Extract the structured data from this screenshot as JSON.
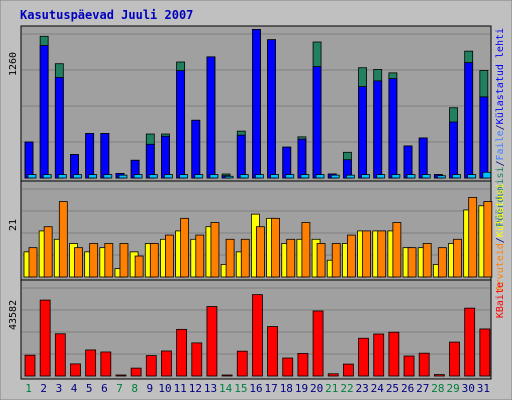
{
  "title": "Kasutuspäevad Juuli 2007",
  "colors": {
    "background": "#c0c0c0",
    "panel": "#a0a0a0",
    "title": "#0000c0",
    "day_normal": "#000080",
    "day_weekend": "#008040",
    "visits": "#208060",
    "pages": "#0000ff",
    "files": "#4080ff",
    "hits": "#00c0ff",
    "kbytes": "#ff0000",
    "sites": "#ffff00",
    "visitors": "#ff8000",
    "legend_pages": "#0000ff",
    "legend_files": "#4080ff",
    "legend_visits": "#208060",
    "legend_sites": "#ff8000",
    "legend_visitors": "#ffff00",
    "legend_kbytes": "#ff0000"
  },
  "chart_data": {
    "type": "bar",
    "categories": [
      "1",
      "2",
      "3",
      "4",
      "5",
      "6",
      "7",
      "8",
      "9",
      "10",
      "11",
      "12",
      "13",
      "14",
      "15",
      "16",
      "17",
      "18",
      "19",
      "20",
      "21",
      "22",
      "23",
      "24",
      "25",
      "26",
      "27",
      "28",
      "29",
      "30",
      "31"
    ],
    "weekend_days": [
      "1",
      "7",
      "8",
      "14",
      "15",
      "21",
      "22",
      "28",
      "29"
    ],
    "panels": [
      {
        "id": "usage",
        "ymax_label": "1260",
        "ymax": 1260,
        "legend": [
          {
            "text": "Pöördumisi",
            "color_key": "legend_visits"
          },
          {
            "text": "/",
            "color_key": "day_normal"
          },
          {
            "text": "Faile",
            "color_key": "legend_files"
          },
          {
            "text": "/",
            "color_key": "day_normal"
          },
          {
            "text": "Külastatud lehti",
            "color_key": "legend_pages"
          }
        ],
        "series": [
          {
            "name": "Pöördumisi",
            "color_key": "visits",
            "values": [
              315,
              1240,
              1000,
              205,
              390,
              390,
              40,
              155,
              385,
              385,
              1015,
              505,
              1060,
              35,
              410,
              1300,
              1210,
              270,
              360,
              1190,
              35,
              225,
              965,
              950,
              920,
              280,
              350,
              30,
              615,
              1110,
              940
            ]
          },
          {
            "name": "Külastatud lehti",
            "color_key": "pages",
            "values": [
              315,
              1160,
              880,
              205,
              390,
              390,
              40,
              155,
              295,
              365,
              940,
              505,
              1060,
              20,
              375,
              1300,
              1210,
              270,
              340,
              975,
              35,
              160,
              800,
              850,
              870,
              280,
              350,
              30,
              490,
              1010,
              710
            ]
          },
          {
            "name": "Faile",
            "color_key": "hits",
            "values": [
              30,
              30,
              30,
              30,
              30,
              30,
              25,
              30,
              30,
              30,
              30,
              30,
              30,
              15,
              30,
              30,
              30,
              30,
              30,
              30,
              25,
              25,
              30,
              30,
              30,
              30,
              30,
              20,
              30,
              30,
              50
            ]
          }
        ]
      },
      {
        "id": "visitors",
        "ymax_label": "21",
        "ymax": 21,
        "legend": [
          {
            "text": "Arvuteid",
            "color_key": "legend_sites"
          },
          {
            "text": "/",
            "color_key": "day_normal"
          },
          {
            "text": "Külastusi",
            "color_key": "legend_visitors"
          }
        ],
        "series": [
          {
            "name": "Külastusi",
            "color_key": "sites",
            "values": [
              6,
              11,
              9,
              8,
              6,
              7,
              2,
              6,
              8,
              9,
              11,
              9,
              12,
              3,
              6,
              15,
              14,
              8,
              9,
              9,
              4,
              8,
              11,
              11,
              11,
              7,
              7,
              3,
              8,
              16,
              17
            ]
          },
          {
            "name": "Arvuteid",
            "color_key": "visitors",
            "values": [
              7,
              12,
              18,
              7,
              8,
              8,
              8,
              5,
              8,
              10,
              14,
              10,
              13,
              9,
              9,
              12,
              14,
              9,
              13,
              8,
              8,
              10,
              11,
              11,
              13,
              7,
              8,
              7,
              9,
              19,
              18
            ]
          }
        ]
      },
      {
        "id": "kbytes",
        "ymax_label": "43582",
        "ymax": 43582,
        "legend": [
          {
            "text": "KBaite",
            "color_key": "legend_kbytes"
          }
        ],
        "series": [
          {
            "name": "KBaite",
            "color_key": "kbytes",
            "values": [
              10300,
              37600,
              20900,
              6000,
              12900,
              11900,
              100,
              3900,
              10100,
              12400,
              23100,
              16400,
              34400,
              500,
              12300,
              40300,
              24500,
              8900,
              11200,
              32200,
              1100,
              5900,
              18700,
              20800,
              21700,
              9900,
              11300,
              700,
              16800,
              33600,
              23300
            ]
          }
        ]
      }
    ]
  }
}
